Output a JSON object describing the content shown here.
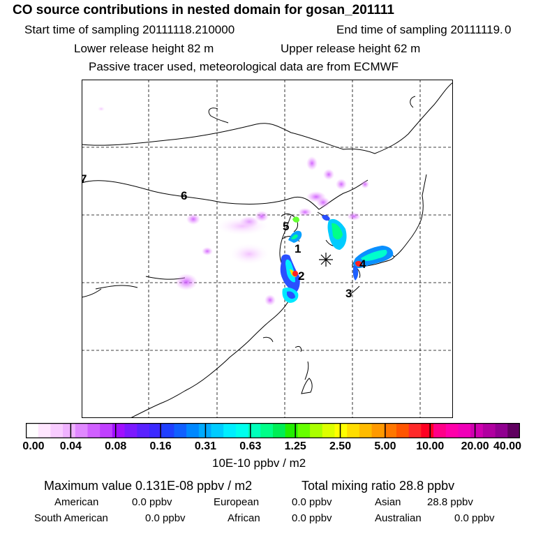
{
  "header": {
    "title": "CO  source contributions in nested domain for gosan_201111",
    "start_label": "Start time of sampling 20111118.210000",
    "end_label": "End time of sampling 20111119.",
    "end_value": "0",
    "lower_release": "Lower release height   82 m",
    "upper_release": "Upper release height   62 m",
    "tracer_note": "Passive tracer used, meteorological data are from ECMWF"
  },
  "map": {
    "receptor_marker": "star-marker",
    "location_labels": [
      "1",
      "2",
      "3",
      "4",
      "5",
      "6",
      "7"
    ]
  },
  "colorbar": {
    "ticks": [
      "0.00",
      "0.04",
      "0.08",
      "0.16",
      "0.31",
      "0.63",
      "1.25",
      "2.50",
      "5.00",
      "10.00",
      "20.00",
      "40.00"
    ],
    "colors": [
      "#ffffff",
      "#ffe6ff",
      "#f8ccff",
      "#efb2ff",
      "#e088ff",
      "#d060ff",
      "#c040ff",
      "#a010ff",
      "#7c1aff",
      "#5a22ff",
      "#3b2aff",
      "#2040ff",
      "#1060ff",
      "#0088ff",
      "#00aaff",
      "#00ccff",
      "#00eeff",
      "#00ffee",
      "#00ffbb",
      "#00ff88",
      "#00ee55",
      "#22ee00",
      "#66ff00",
      "#aaff00",
      "#ddff00",
      "#ffff00",
      "#ffdd00",
      "#ffbb00",
      "#ff9900",
      "#ff7700",
      "#ff5500",
      "#ff2a2a",
      "#ff0022",
      "#ff0088",
      "#ff00aa",
      "#f000b8",
      "#d000b0",
      "#b000a0",
      "#900090",
      "#600060"
    ],
    "unit_label": "10E-10 ppbv / m2"
  },
  "summary": {
    "max_value": "Maximum value  0.131E-08 ppbv / m2",
    "total_mixing": "Total mixing ratio      28.8 ppbv",
    "american_label": "American",
    "american_value": "0.0 ppbv",
    "european_label": "European",
    "european_value": "0.0 ppbv",
    "asian_label": "Asian",
    "asian_value": "28.8 ppbv",
    "south_american_label": "South American",
    "south_american_value": "0.0 ppbv",
    "african_label": "African",
    "african_value": "0.0 ppbv",
    "australian_label": "Australian",
    "australian_value": "0.0 ppbv"
  }
}
